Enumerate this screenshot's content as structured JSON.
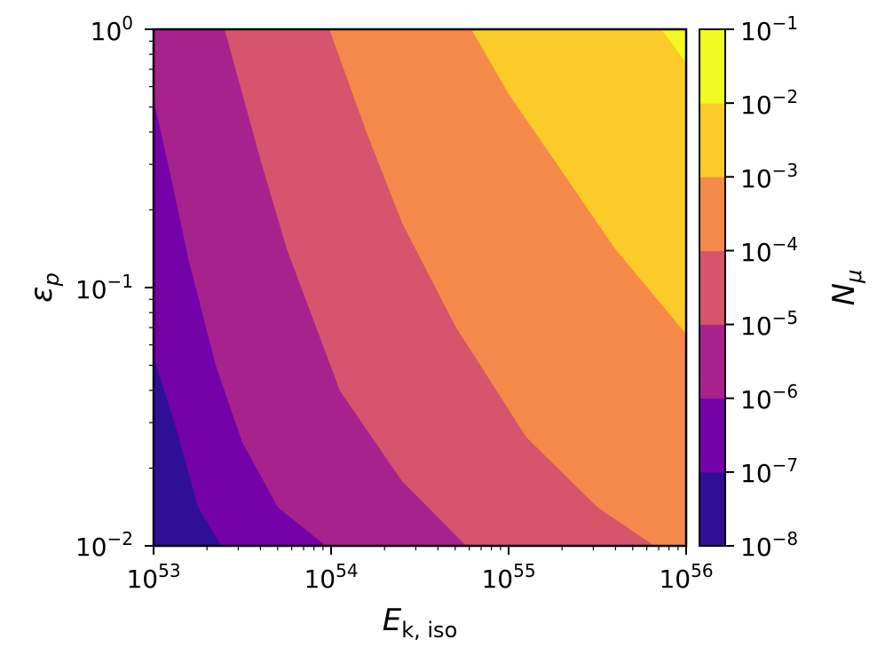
{
  "chart_data": {
    "type": "contourf",
    "x_axis": {
      "label": "E",
      "label_subscript": "k, iso",
      "scale": "log",
      "range": [
        1e+53,
        1e+56
      ],
      "ticks": [
        {
          "base": "10",
          "exp": "53"
        },
        {
          "base": "10",
          "exp": "54"
        },
        {
          "base": "10",
          "exp": "55"
        },
        {
          "base": "10",
          "exp": "56"
        }
      ]
    },
    "y_axis": {
      "label": "ε",
      "label_subscript": "p",
      "scale": "log",
      "range": [
        0.01,
        1
      ],
      "ticks": [
        {
          "base": "10",
          "exp": "−2"
        },
        {
          "base": "10",
          "exp": "−1"
        },
        {
          "base": "10",
          "exp": "0"
        }
      ]
    },
    "colorbar": {
      "label": "N",
      "label_subscript": "μ",
      "colormap": "plasma",
      "scale": "log",
      "range": [
        1e-08,
        0.1
      ],
      "ticks": [
        {
          "base": "10",
          "exp": "−8"
        },
        {
          "base": "10",
          "exp": "−7"
        },
        {
          "base": "10",
          "exp": "−6"
        },
        {
          "base": "10",
          "exp": "−5"
        },
        {
          "base": "10",
          "exp": "−4"
        },
        {
          "base": "10",
          "exp": "−3"
        },
        {
          "base": "10",
          "exp": "−2"
        },
        {
          "base": "10",
          "exp": "−1"
        }
      ],
      "level_colors": [
        "#2f0f96",
        "#7402a8",
        "#a8228d",
        "#d6546c",
        "#f5894a",
        "#fbcb28",
        "#f0f920"
      ]
    },
    "contour_boundaries": [
      {
        "level": 1e-07,
        "points": [
          [
            53.0,
            -1.27
          ],
          [
            53.13,
            -1.55
          ],
          [
            53.25,
            -1.85
          ],
          [
            53.38,
            -2.0
          ]
        ]
      },
      {
        "level": 1e-06,
        "points": [
          [
            53.0,
            -0.27
          ],
          [
            53.1,
            -0.58
          ],
          [
            53.2,
            -0.9
          ],
          [
            53.35,
            -1.3
          ],
          [
            53.5,
            -1.6
          ],
          [
            53.7,
            -1.85
          ],
          [
            53.97,
            -2.0
          ]
        ]
      },
      {
        "level": 1e-05,
        "points": [
          [
            53.4,
            0.0
          ],
          [
            53.6,
            -0.5
          ],
          [
            53.75,
            -0.85
          ],
          [
            54.05,
            -1.4
          ],
          [
            54.4,
            -1.75
          ],
          [
            54.76,
            -2.0
          ]
        ]
      },
      {
        "level": 0.0001,
        "points": [
          [
            53.99,
            0.0
          ],
          [
            54.2,
            -0.4
          ],
          [
            54.4,
            -0.75
          ],
          [
            54.7,
            -1.15
          ],
          [
            55.1,
            -1.58
          ],
          [
            55.5,
            -1.85
          ],
          [
            55.82,
            -2.0
          ]
        ]
      },
      {
        "level": 0.001,
        "points": [
          [
            54.79,
            0.0
          ],
          [
            55.0,
            -0.25
          ],
          [
            55.3,
            -0.55
          ],
          [
            55.6,
            -0.85
          ],
          [
            56.0,
            -1.18
          ]
        ]
      },
      {
        "level": 0.01,
        "points": [
          [
            55.86,
            0.0
          ],
          [
            56.0,
            -0.13
          ]
        ]
      }
    ]
  }
}
